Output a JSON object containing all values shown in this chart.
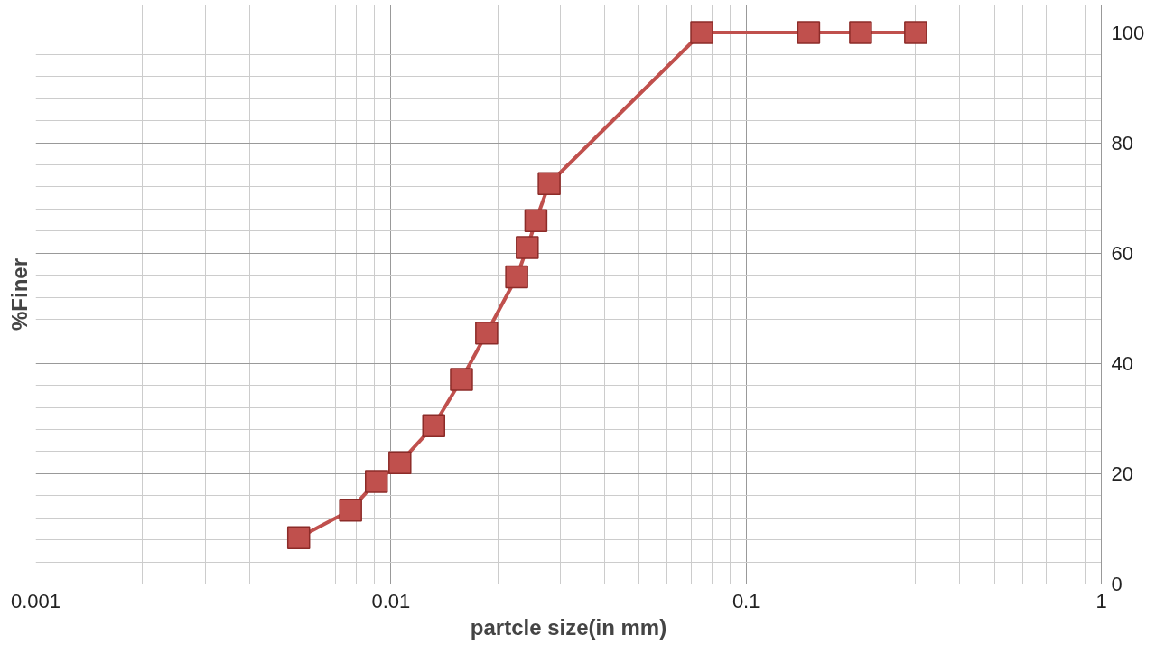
{
  "chart_data": {
    "type": "line",
    "xlabel": "partcle size(in mm)",
    "ylabel": "%Finer",
    "x": [
      0.0055,
      0.0077,
      0.0091,
      0.0106,
      0.0132,
      0.0158,
      0.0186,
      0.0226,
      0.0242,
      0.0256,
      0.0279,
      0.075,
      0.15,
      0.21,
      0.3
    ],
    "series": [
      {
        "color": "#c0504d",
        "values": [
          8.4,
          13.4,
          18.6,
          22,
          28.7,
          37.1,
          45.5,
          55.7,
          61,
          65.9,
          72.6,
          100,
          100,
          100,
          100
        ]
      }
    ],
    "log": "x",
    "xlim": [
      0.001,
      1
    ],
    "xticks": [
      0.001,
      0.01,
      0.1,
      1
    ],
    "ylim": [
      0,
      105
    ],
    "yticks": [
      0,
      20,
      40,
      60,
      80,
      100
    ],
    "grid": true,
    "marker": "square",
    "line_style": "solid"
  }
}
